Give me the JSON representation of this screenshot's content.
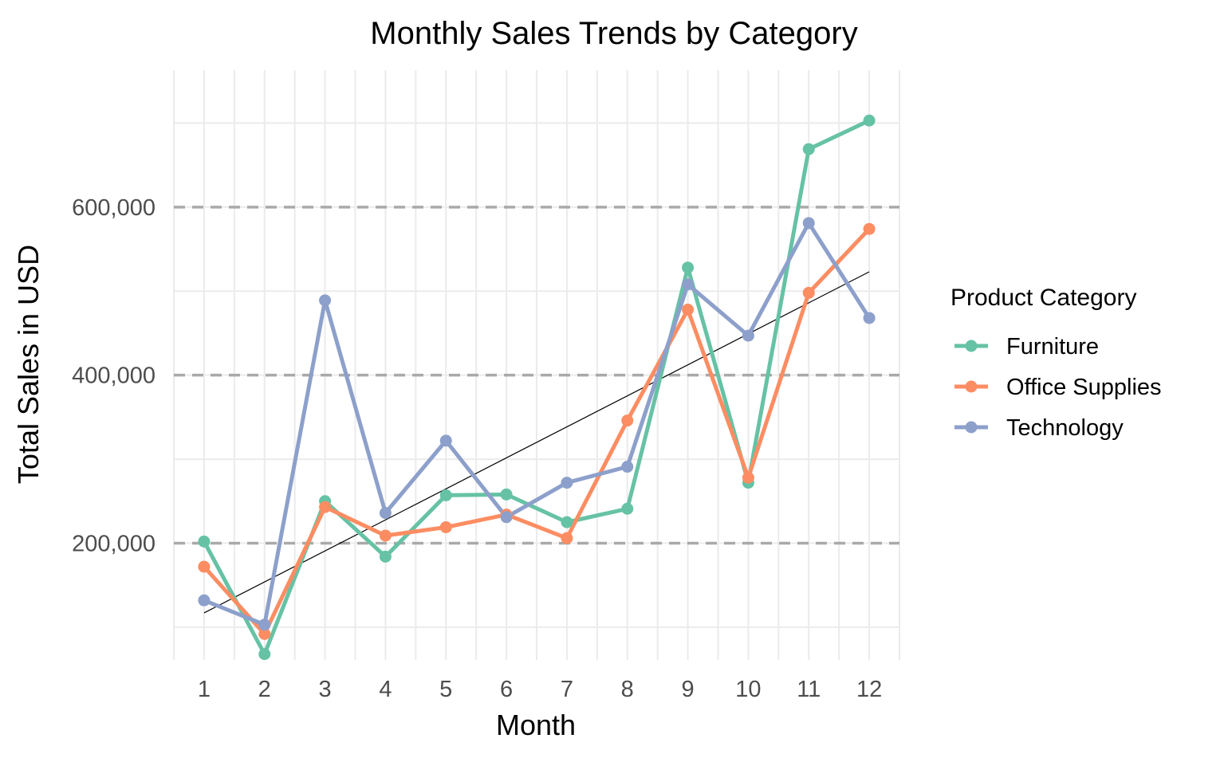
{
  "chart_data": {
    "type": "line",
    "title": "Monthly Sales Trends by Category",
    "xlabel": "Month",
    "ylabel": "Total Sales in USD",
    "x": [
      1,
      2,
      3,
      4,
      5,
      6,
      7,
      8,
      9,
      10,
      11,
      12
    ],
    "x_tick_labels": [
      "1",
      "2",
      "3",
      "4",
      "5",
      "6",
      "7",
      "8",
      "9",
      "10",
      "11",
      "12"
    ],
    "xlim": [
      0.5,
      12.5
    ],
    "ylim": [
      61000,
      763000
    ],
    "y_ticks": [
      200000,
      400000,
      600000
    ],
    "y_tick_labels": [
      "200,000",
      "400,000",
      "600,000"
    ],
    "reference_lines": [
      200000,
      400000,
      600000
    ],
    "grid": true,
    "legend": {
      "title": "Product Category",
      "position": "right"
    },
    "series": [
      {
        "name": "Furniture",
        "color": "#66c2a5",
        "values": [
          202000,
          68000,
          250000,
          184000,
          257000,
          258000,
          225000,
          241000,
          528000,
          272000,
          669000,
          703000
        ]
      },
      {
        "name": "Office Supplies",
        "color": "#fc8d62",
        "values": [
          172000,
          92000,
          243000,
          209000,
          219000,
          234000,
          206000,
          346000,
          478000,
          278000,
          498000,
          574000
        ]
      },
      {
        "name": "Technology",
        "color": "#8da0cb",
        "values": [
          132000,
          103000,
          489000,
          236000,
          322000,
          231000,
          272000,
          291000,
          508000,
          447000,
          581000,
          468000
        ]
      }
    ],
    "trend_line": {
      "color": "#000000",
      "x": [
        1,
        12
      ],
      "values": [
        117000,
        523000
      ]
    }
  }
}
